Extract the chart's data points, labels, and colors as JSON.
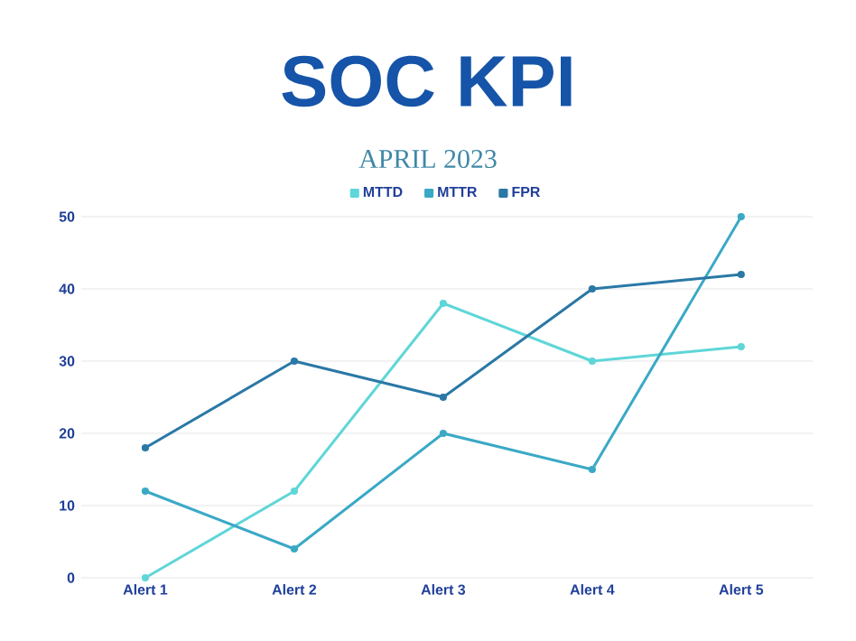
{
  "chart_data": {
    "type": "line",
    "title": "SOC KPI",
    "subtitle": "APRIL 2023",
    "categories": [
      "Alert 1",
      "Alert 2",
      "Alert 3",
      "Alert 4",
      "Alert 5"
    ],
    "series": [
      {
        "name": "MTTD",
        "color": "#5fd6d8",
        "values": [
          0,
          12,
          38,
          30,
          32
        ]
      },
      {
        "name": "MTTR",
        "color": "#3aa9c6",
        "values": [
          12,
          4,
          20,
          15,
          50
        ]
      },
      {
        "name": "FPR",
        "color": "#2a78a6",
        "values": [
          18,
          30,
          25,
          40,
          42
        ]
      }
    ],
    "ylim": [
      0,
      50
    ],
    "yticks": [
      0,
      10,
      20,
      30,
      40,
      50
    ],
    "grid": "y",
    "legend": "top",
    "marker": "circle",
    "line_style": "solid"
  }
}
